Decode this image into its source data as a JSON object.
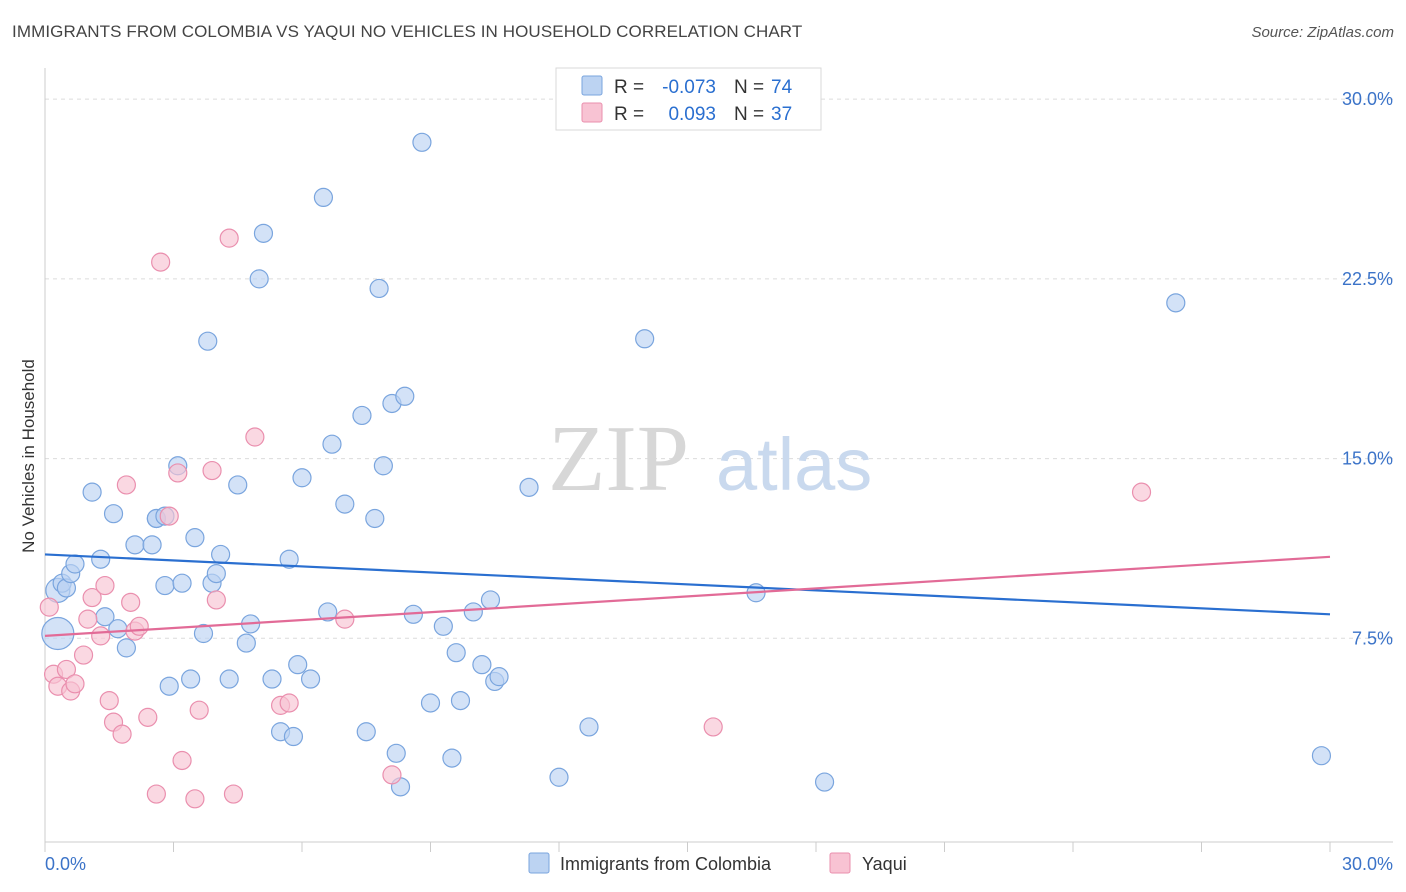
{
  "title": "IMMIGRANTS FROM COLOMBIA VS YAQUI NO VEHICLES IN HOUSEHOLD CORRELATION CHART",
  "source": "Source: ZipAtlas.com",
  "watermark": {
    "zip": "ZIP",
    "atlas": "atlas"
  },
  "colors": {
    "blue_fill": "#bcd3f2",
    "blue_stroke": "#7aa5de",
    "blue_line": "#2a6fd0",
    "pink_fill": "#f8c3d3",
    "pink_stroke": "#ea8fae",
    "pink_line": "#e26b97",
    "value_text": "#2a6fd0",
    "grid": "#dcdcdc"
  },
  "legend": {
    "r_label": "R =",
    "n_label": "N =",
    "series": [
      {
        "r": "-0.073",
        "n": "74"
      },
      {
        "r": "0.093",
        "n": "37"
      }
    ]
  },
  "chart_data": {
    "type": "scatter",
    "title": "IMMIGRANTS FROM COLOMBIA VS YAQUI NO VEHICLES IN HOUSEHOLD CORRELATION CHART",
    "xlabel": "",
    "ylabel": "No Vehicles in Household",
    "xlim": [
      0,
      30
    ],
    "ylim": [
      0,
      30.8
    ],
    "x_tick_labels": [
      "0.0%",
      "30.0%"
    ],
    "y_ticks": [
      7.5,
      15.0,
      22.5,
      30.0
    ],
    "y_tick_labels": [
      "7.5%",
      "15.0%",
      "22.5%",
      "30.0%"
    ],
    "grid": true,
    "legend_position": "top-center",
    "series": [
      {
        "name": "Immigrants from Colombia",
        "color": "blue",
        "trend": {
          "x": [
            0,
            30
          ],
          "y": [
            11.0,
            8.5
          ]
        },
        "points": [
          [
            0.3,
            7.7
          ],
          [
            0.3,
            9.5
          ],
          [
            0.4,
            9.8
          ],
          [
            0.5,
            9.6
          ],
          [
            0.6,
            10.2
          ],
          [
            0.7,
            10.6
          ],
          [
            1.1,
            13.6
          ],
          [
            1.3,
            10.8
          ],
          [
            1.4,
            8.4
          ],
          [
            1.6,
            12.7
          ],
          [
            1.7,
            7.9
          ],
          [
            1.9,
            7.1
          ],
          [
            2.1,
            11.4
          ],
          [
            2.5,
            11.4
          ],
          [
            2.6,
            12.5
          ],
          [
            2.6,
            12.5
          ],
          [
            2.8,
            12.6
          ],
          [
            2.8,
            9.7
          ],
          [
            2.9,
            5.5
          ],
          [
            3.1,
            14.7
          ],
          [
            3.2,
            9.8
          ],
          [
            3.4,
            5.8
          ],
          [
            3.5,
            11.7
          ],
          [
            3.7,
            7.7
          ],
          [
            3.8,
            19.9
          ],
          [
            3.9,
            9.8
          ],
          [
            4.0,
            10.2
          ],
          [
            4.1,
            11.0
          ],
          [
            4.3,
            5.8
          ],
          [
            4.5,
            13.9
          ],
          [
            4.7,
            7.3
          ],
          [
            4.8,
            8.1
          ],
          [
            5.0,
            22.5
          ],
          [
            5.1,
            24.4
          ],
          [
            5.3,
            5.8
          ],
          [
            5.5,
            3.6
          ],
          [
            5.7,
            10.8
          ],
          [
            5.8,
            3.4
          ],
          [
            5.9,
            6.4
          ],
          [
            6.0,
            14.2
          ],
          [
            6.2,
            5.8
          ],
          [
            6.5,
            25.9
          ],
          [
            6.6,
            8.6
          ],
          [
            6.7,
            15.6
          ],
          [
            7.0,
            13.1
          ],
          [
            7.4,
            16.8
          ],
          [
            7.5,
            3.6
          ],
          [
            7.7,
            12.5
          ],
          [
            7.8,
            22.1
          ],
          [
            7.9,
            14.7
          ],
          [
            8.1,
            17.3
          ],
          [
            8.2,
            2.7
          ],
          [
            8.3,
            1.3
          ],
          [
            8.4,
            17.6
          ],
          [
            8.6,
            8.5
          ],
          [
            8.8,
            28.2
          ],
          [
            9.0,
            4.8
          ],
          [
            9.3,
            8.0
          ],
          [
            9.5,
            2.5
          ],
          [
            9.6,
            6.9
          ],
          [
            9.7,
            4.9
          ],
          [
            10.0,
            8.6
          ],
          [
            10.2,
            6.4
          ],
          [
            10.4,
            9.1
          ],
          [
            10.5,
            5.7
          ],
          [
            10.6,
            5.9
          ],
          [
            11.3,
            13.8
          ],
          [
            12.0,
            1.7
          ],
          [
            12.7,
            3.8
          ],
          [
            14.0,
            20.0
          ],
          [
            16.6,
            9.4
          ],
          [
            18.2,
            1.5
          ],
          [
            26.4,
            21.5
          ],
          [
            29.8,
            2.6
          ]
        ]
      },
      {
        "name": "Yaqui",
        "color": "pink",
        "trend": {
          "x": [
            0,
            30
          ],
          "y": [
            7.6,
            10.9
          ]
        },
        "points": [
          [
            0.1,
            8.8
          ],
          [
            0.2,
            6.0
          ],
          [
            0.3,
            5.5
          ],
          [
            0.5,
            6.2
          ],
          [
            0.6,
            5.3
          ],
          [
            0.7,
            5.6
          ],
          [
            0.9,
            6.8
          ],
          [
            1.0,
            8.3
          ],
          [
            1.1,
            9.2
          ],
          [
            1.3,
            7.6
          ],
          [
            1.4,
            9.7
          ],
          [
            1.5,
            4.9
          ],
          [
            1.6,
            4.0
          ],
          [
            1.8,
            3.5
          ],
          [
            1.9,
            13.9
          ],
          [
            2.0,
            9.0
          ],
          [
            2.1,
            7.8
          ],
          [
            2.2,
            8.0
          ],
          [
            2.4,
            4.2
          ],
          [
            2.6,
            1.0
          ],
          [
            2.7,
            23.2
          ],
          [
            2.9,
            12.6
          ],
          [
            3.1,
            14.4
          ],
          [
            3.2,
            2.4
          ],
          [
            3.5,
            0.8
          ],
          [
            3.6,
            4.5
          ],
          [
            3.9,
            14.5
          ],
          [
            4.0,
            9.1
          ],
          [
            4.3,
            24.2
          ],
          [
            4.4,
            1.0
          ],
          [
            4.9,
            15.9
          ],
          [
            5.5,
            4.7
          ],
          [
            5.7,
            4.8
          ],
          [
            7.0,
            8.3
          ],
          [
            8.1,
            1.8
          ],
          [
            15.6,
            3.8
          ],
          [
            25.6,
            13.6
          ]
        ]
      }
    ]
  }
}
